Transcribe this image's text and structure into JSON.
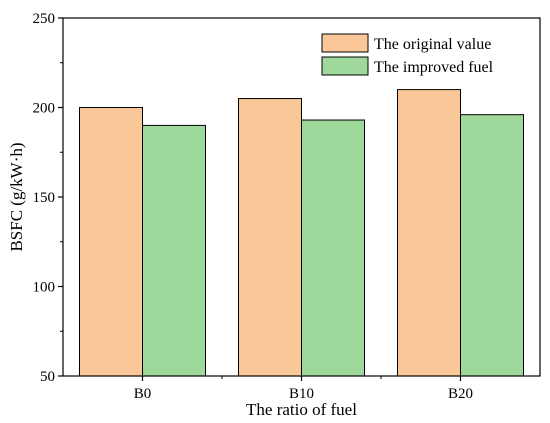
{
  "chart_data": {
    "type": "bar",
    "title": "",
    "xlabel": "The ratio of fuel",
    "ylabel": "BSFC (g/kW·h)",
    "categories": [
      "B0",
      "B10",
      "B20"
    ],
    "ylim": [
      50,
      250
    ],
    "yticks": [
      50,
      100,
      150,
      200,
      250
    ],
    "grid": false,
    "legend_position": "top-right",
    "series": [
      {
        "name": "The original value",
        "values": [
          200,
          205,
          210
        ],
        "color": "#FAC898"
      },
      {
        "name": "The improved fuel",
        "values": [
          190,
          193,
          196
        ],
        "color": "#9ED99B"
      }
    ]
  }
}
